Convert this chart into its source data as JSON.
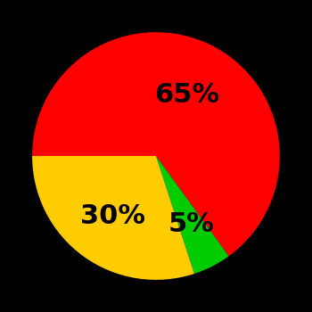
{
  "slices": [
    65,
    5,
    30
  ],
  "colors": [
    "#ff0000",
    "#00cc00",
    "#ffcc00"
  ],
  "labels": [
    "65%",
    "5%",
    "30%"
  ],
  "background_color": "#000000",
  "startangle": 180,
  "label_fontsize": 22,
  "label_color": "#000000",
  "label_fontweight": "bold",
  "label_radii": [
    0.55,
    0.62,
    0.6
  ]
}
